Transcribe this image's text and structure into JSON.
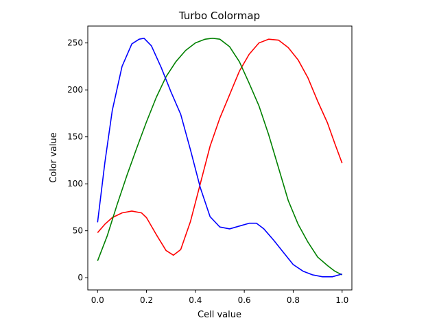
{
  "chart_data": {
    "type": "line",
    "title": "Turbo Colormap",
    "xlabel": "Cell value",
    "ylabel": "Color value",
    "xlim": [
      -0.04,
      1.04
    ],
    "ylim": [
      -13,
      268
    ],
    "xticks": [
      0.0,
      0.2,
      0.4,
      0.6,
      0.8,
      1.0
    ],
    "xtick_labels": [
      "0.0",
      "0.2",
      "0.4",
      "0.6",
      "0.8",
      "1.0"
    ],
    "yticks": [
      0,
      50,
      100,
      150,
      200,
      250
    ],
    "ytick_labels": [
      "0",
      "50",
      "100",
      "150",
      "200",
      "250"
    ],
    "grid": false,
    "series": [
      {
        "color": "#ff0000",
        "points": [
          [
            0,
            48
          ],
          [
            0.03,
            57
          ],
          [
            0.06,
            64
          ],
          [
            0.1,
            69
          ],
          [
            0.14,
            71
          ],
          [
            0.18,
            69
          ],
          [
            0.2,
            64
          ],
          [
            0.24,
            46
          ],
          [
            0.28,
            29
          ],
          [
            0.31,
            24
          ],
          [
            0.34,
            30
          ],
          [
            0.38,
            60
          ],
          [
            0.42,
            100
          ],
          [
            0.46,
            140
          ],
          [
            0.5,
            170
          ],
          [
            0.54,
            195
          ],
          [
            0.58,
            220
          ],
          [
            0.62,
            238
          ],
          [
            0.66,
            250
          ],
          [
            0.7,
            254
          ],
          [
            0.74,
            253
          ],
          [
            0.78,
            245
          ],
          [
            0.82,
            232
          ],
          [
            0.86,
            213
          ],
          [
            0.9,
            188
          ],
          [
            0.94,
            165
          ],
          [
            0.97,
            143
          ],
          [
            1.0,
            122
          ]
        ]
      },
      {
        "color": "#008000",
        "points": [
          [
            0,
            18
          ],
          [
            0.04,
            45
          ],
          [
            0.08,
            78
          ],
          [
            0.12,
            109
          ],
          [
            0.16,
            138
          ],
          [
            0.2,
            166
          ],
          [
            0.24,
            192
          ],
          [
            0.28,
            214
          ],
          [
            0.32,
            230
          ],
          [
            0.36,
            242
          ],
          [
            0.4,
            250
          ],
          [
            0.44,
            254
          ],
          [
            0.47,
            255
          ],
          [
            0.5,
            254
          ],
          [
            0.54,
            246
          ],
          [
            0.58,
            230
          ],
          [
            0.62,
            207
          ],
          [
            0.66,
            183
          ],
          [
            0.7,
            152
          ],
          [
            0.74,
            117
          ],
          [
            0.78,
            82
          ],
          [
            0.82,
            57
          ],
          [
            0.86,
            38
          ],
          [
            0.9,
            22
          ],
          [
            0.94,
            13
          ],
          [
            0.97,
            7
          ],
          [
            1.0,
            3
          ]
        ]
      },
      {
        "color": "#0000ff",
        "points": [
          [
            0,
            59
          ],
          [
            0.03,
            123
          ],
          [
            0.06,
            178
          ],
          [
            0.1,
            225
          ],
          [
            0.14,
            249
          ],
          [
            0.17,
            254
          ],
          [
            0.19,
            255
          ],
          [
            0.22,
            247
          ],
          [
            0.26,
            224
          ],
          [
            0.3,
            198
          ],
          [
            0.34,
            174
          ],
          [
            0.38,
            136
          ],
          [
            0.42,
            96
          ],
          [
            0.46,
            65
          ],
          [
            0.5,
            54
          ],
          [
            0.54,
            52
          ],
          [
            0.58,
            55
          ],
          [
            0.62,
            58
          ],
          [
            0.65,
            58
          ],
          [
            0.68,
            52
          ],
          [
            0.72,
            40
          ],
          [
            0.76,
            27
          ],
          [
            0.8,
            14
          ],
          [
            0.84,
            7
          ],
          [
            0.88,
            3
          ],
          [
            0.92,
            1
          ],
          [
            0.96,
            1
          ],
          [
            1.0,
            4
          ]
        ]
      }
    ]
  }
}
